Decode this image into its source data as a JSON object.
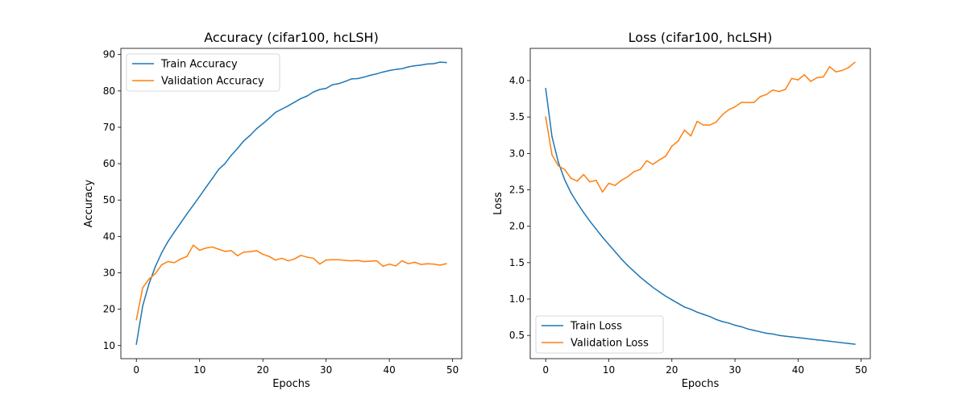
{
  "chart_data": [
    {
      "type": "line",
      "title": "Accuracy (cifar100, hcLSH)",
      "xlabel": "Epochs",
      "ylabel": "Accuracy",
      "xlim": [
        -2.45,
        51.45
      ],
      "ylim": [
        6.4,
        91.7
      ],
      "xticks": [
        0,
        10,
        20,
        30,
        40,
        50
      ],
      "yticks": [
        10,
        20,
        30,
        40,
        50,
        60,
        70,
        80,
        90
      ],
      "legend_position": "upper-left",
      "grid": false,
      "x": [
        0,
        1,
        2,
        3,
        4,
        5,
        6,
        7,
        8,
        9,
        10,
        11,
        12,
        13,
        14,
        15,
        16,
        17,
        18,
        19,
        20,
        21,
        22,
        23,
        24,
        25,
        26,
        27,
        28,
        29,
        30,
        31,
        32,
        33,
        34,
        35,
        36,
        37,
        38,
        39,
        40,
        41,
        42,
        43,
        44,
        45,
        46,
        47,
        48,
        49
      ],
      "series": [
        {
          "name": "Train Accuracy",
          "color": "#1f77b4",
          "values": [
            10.4,
            20.9,
            27.0,
            31.7,
            35.5,
            38.6,
            41.2,
            43.7,
            46.2,
            48.6,
            51.0,
            53.5,
            55.9,
            58.4,
            60.0,
            62.3,
            64.2,
            66.3,
            67.8,
            69.6,
            71.0,
            72.5,
            74.1,
            75.0,
            75.9,
            76.9,
            77.9,
            78.6,
            79.7,
            80.4,
            80.7,
            81.7,
            82.0,
            82.6,
            83.3,
            83.4,
            83.8,
            84.3,
            84.7,
            85.2,
            85.6,
            85.9,
            86.1,
            86.6,
            86.9,
            87.1,
            87.4,
            87.5,
            87.9,
            87.8
          ]
        },
        {
          "name": "Validation Accuracy",
          "color": "#ff7f0e",
          "values": [
            17.1,
            25.9,
            28.3,
            29.8,
            32.2,
            33.1,
            32.8,
            33.8,
            34.5,
            37.6,
            36.2,
            36.8,
            37.1,
            36.5,
            35.9,
            36.1,
            34.7,
            35.7,
            35.8,
            36.1,
            35.1,
            34.5,
            33.5,
            34.0,
            33.3,
            33.8,
            34.8,
            34.3,
            34.0,
            32.4,
            33.5,
            33.6,
            33.6,
            33.4,
            33.3,
            33.4,
            33.1,
            33.2,
            33.3,
            31.8,
            32.4,
            31.9,
            33.3,
            32.5,
            32.9,
            32.3,
            32.5,
            32.4,
            32.1,
            32.5
          ]
        }
      ]
    },
    {
      "type": "line",
      "title": "Loss (cifar100, hcLSH)",
      "xlabel": "Epochs",
      "ylabel": "Loss",
      "xlim": [
        -2.45,
        51.45
      ],
      "ylim": [
        0.181,
        4.443
      ],
      "xticks": [
        0,
        10,
        20,
        30,
        40,
        50
      ],
      "yticks": [
        0.5,
        1.0,
        1.5,
        2.0,
        2.5,
        3.0,
        3.5,
        4.0
      ],
      "ytick_labels": [
        "0.5",
        "1.0",
        "1.5",
        "2.0",
        "2.5",
        "3.0",
        "3.5",
        "4.0"
      ],
      "legend_position": "lower-left",
      "grid": false,
      "x": [
        0,
        1,
        2,
        3,
        4,
        5,
        6,
        7,
        8,
        9,
        10,
        11,
        12,
        13,
        14,
        15,
        16,
        17,
        18,
        19,
        20,
        21,
        22,
        23,
        24,
        25,
        26,
        27,
        28,
        29,
        30,
        31,
        32,
        33,
        34,
        35,
        36,
        37,
        38,
        39,
        40,
        41,
        42,
        43,
        44,
        45,
        46,
        47,
        48,
        49
      ],
      "series": [
        {
          "name": "Train Loss",
          "color": "#1f77b4",
          "values": [
            3.89,
            3.23,
            2.88,
            2.64,
            2.46,
            2.32,
            2.19,
            2.07,
            1.96,
            1.85,
            1.75,
            1.65,
            1.55,
            1.46,
            1.38,
            1.3,
            1.23,
            1.16,
            1.1,
            1.04,
            0.99,
            0.94,
            0.89,
            0.86,
            0.82,
            0.79,
            0.76,
            0.72,
            0.69,
            0.67,
            0.64,
            0.62,
            0.59,
            0.57,
            0.55,
            0.53,
            0.52,
            0.5,
            0.49,
            0.48,
            0.47,
            0.46,
            0.45,
            0.44,
            0.43,
            0.42,
            0.41,
            0.4,
            0.39,
            0.38
          ]
        },
        {
          "name": "Validation Loss",
          "color": "#ff7f0e",
          "values": [
            3.5,
            2.98,
            2.83,
            2.78,
            2.66,
            2.62,
            2.71,
            2.61,
            2.63,
            2.47,
            2.59,
            2.56,
            2.63,
            2.68,
            2.75,
            2.78,
            2.9,
            2.85,
            2.91,
            2.96,
            3.1,
            3.17,
            3.32,
            3.24,
            3.44,
            3.39,
            3.39,
            3.43,
            3.53,
            3.6,
            3.64,
            3.7,
            3.7,
            3.7,
            3.78,
            3.81,
            3.87,
            3.85,
            3.88,
            4.03,
            4.01,
            4.08,
            3.99,
            4.04,
            4.05,
            4.19,
            4.12,
            4.14,
            4.18,
            4.25
          ]
        }
      ]
    }
  ]
}
